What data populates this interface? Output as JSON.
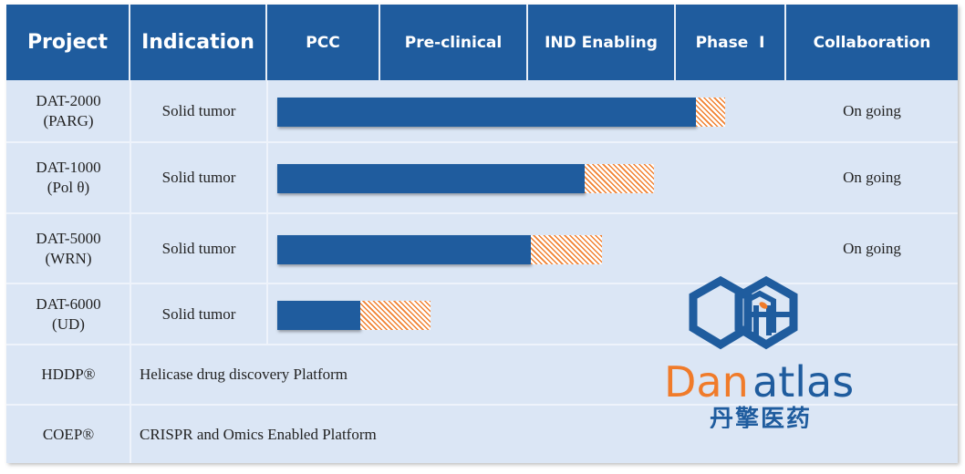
{
  "header": {
    "columns": [
      "Project",
      "Indication",
      "PCC",
      "Pre-clinical",
      "IND Enabling",
      "Phase  I",
      "Collaboration"
    ]
  },
  "colors": {
    "header": "#1f5c9e",
    "row": "#dbe6f5",
    "progress": "#1f5c9e",
    "hatch": "#f08030"
  },
  "progress_scale": "stages: 0=PCC start, 1=Pre-clinical start, 2=IND Enabling start, 3=Phase I start, 4=Phase I end",
  "rows": [
    {
      "project": "DAT-2000",
      "target": "(PARG)",
      "indication": "Solid tumor",
      "completed": 3.18,
      "in_progress": 3.45,
      "collaboration": "On going"
    },
    {
      "project": "DAT-1000",
      "target": "(Pol θ)",
      "indication": "Solid tumor",
      "completed": 2.38,
      "in_progress": 2.85,
      "collaboration": "On going"
    },
    {
      "project": "DAT-5000",
      "target": "(WRN)",
      "indication": "Solid tumor",
      "completed": 2.02,
      "in_progress": 2.5,
      "collaboration": "On going"
    },
    {
      "project": "DAT-6000",
      "target": "(UD)",
      "indication": "Solid tumor",
      "completed": 0.82,
      "in_progress": 1.34,
      "collaboration": ""
    }
  ],
  "platforms": [
    {
      "name": "HDDP®",
      "description": "Helicase drug discovery Platform"
    },
    {
      "name": "COEP®",
      "description": "CRISPR and Omics Enabled Platform"
    }
  ],
  "logo": {
    "text_orange": "Dan",
    "text_blue": "atlas",
    "chinese": "丹擎医药"
  }
}
